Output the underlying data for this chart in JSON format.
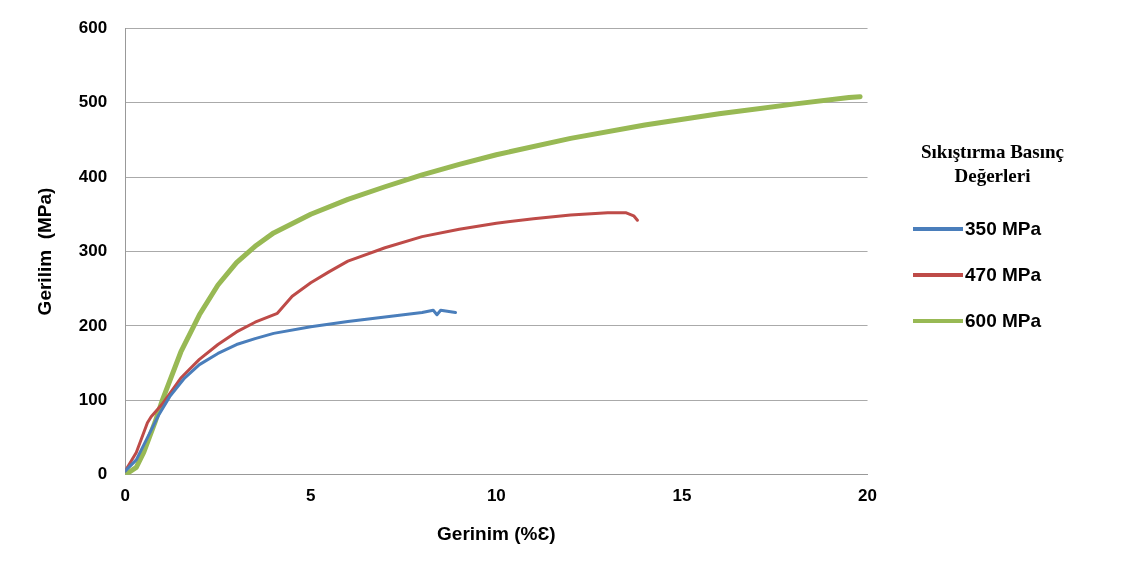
{
  "chart_data": {
    "type": "line",
    "xlabel": "Gerinim (%Ɛ)",
    "ylabel": "Gerilim  (MPa)",
    "legend_title": "Sıkıştırma Basınç Değerleri",
    "xlim": [
      0,
      20
    ],
    "xticks": [
      0,
      5,
      10,
      15,
      20
    ],
    "ylim": [
      0,
      600
    ],
    "yticks": [
      0,
      100,
      200,
      300,
      400,
      500,
      600
    ],
    "grid": "y",
    "legend": "right",
    "marker": "none",
    "line_style": "solid",
    "series": [
      {
        "name": "350 MPa",
        "color": "#4a7ebb",
        "x": [
          0,
          0.3,
          0.6,
          0.9,
          1.2,
          1.6,
          2,
          2.5,
          3,
          3.5,
          4,
          5,
          6,
          7,
          8,
          8.3,
          8.4,
          8.5,
          8.9
        ],
        "values": [
          5,
          20,
          50,
          80,
          105,
          130,
          148,
          163,
          175,
          183,
          190,
          199,
          206,
          212,
          218,
          221,
          215,
          221,
          218
        ]
      },
      {
        "name": "470 MPa",
        "color": "#be4b48",
        "x": [
          0,
          0.3,
          0.6,
          0.7,
          1,
          1.5,
          2,
          2.5,
          3,
          3.5,
          4.1,
          4.5,
          5,
          5.5,
          6,
          7,
          8,
          9,
          10,
          11,
          12,
          13,
          13.5,
          13.7,
          13.8
        ],
        "values": [
          5,
          30,
          70,
          78,
          95,
          130,
          155,
          175,
          192,
          205,
          217,
          240,
          258,
          273,
          287,
          305,
          320,
          330,
          338,
          344,
          349,
          352,
          352,
          348,
          342
        ]
      },
      {
        "name": "600 MPa",
        "color": "#98b954",
        "x": [
          0,
          0.3,
          0.5,
          0.8,
          1,
          1.5,
          2,
          2.5,
          3,
          3.5,
          4,
          5,
          6,
          7,
          8,
          9,
          10,
          12,
          14,
          16,
          18,
          19.5,
          19.8
        ],
        "values": [
          0,
          10,
          30,
          70,
          100,
          165,
          215,
          255,
          285,
          307,
          325,
          350,
          370,
          387,
          403,
          417,
          430,
          452,
          470,
          485,
          498,
          507,
          508
        ]
      }
    ]
  }
}
